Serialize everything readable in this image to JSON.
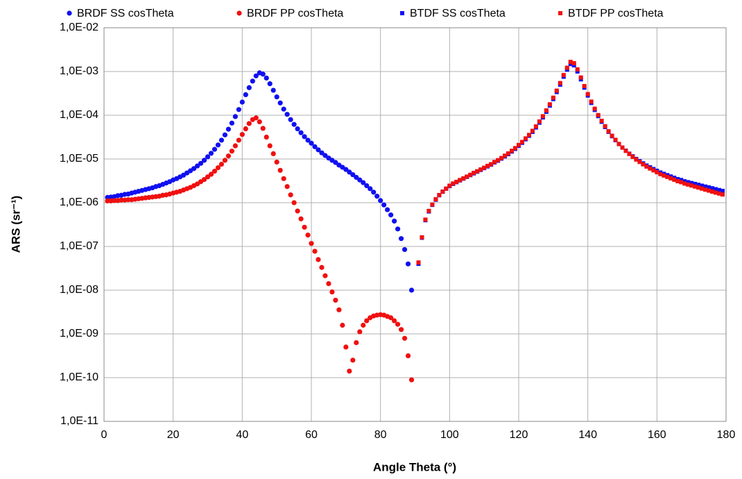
{
  "chart_data": {
    "type": "scatter",
    "x_label": "Angle Theta (°)",
    "y_label": "ARS (sr⁻¹)",
    "xlim": [
      0,
      180
    ],
    "xticks": [
      0,
      20,
      40,
      60,
      80,
      100,
      120,
      140,
      160,
      180
    ],
    "ylim": [
      1e-11,
      0.01
    ],
    "log_y": true,
    "grid": true,
    "legend": "top",
    "yticks": [
      {
        "value": 1e-11,
        "label": "1,0E-11"
      },
      {
        "value": 1e-10,
        "label": "1,0E-10"
      },
      {
        "value": 1e-09,
        "label": "1,0E-09"
      },
      {
        "value": 1e-08,
        "label": "1,0E-08"
      },
      {
        "value": 1e-07,
        "label": "1,0E-07"
      },
      {
        "value": 1e-06,
        "label": "1,0E-06"
      },
      {
        "value": 1e-05,
        "label": "1,0E-05"
      },
      {
        "value": 0.0001,
        "label": "1,0E-04"
      },
      {
        "value": 0.001,
        "label": "1,0E-03"
      },
      {
        "value": 0.01,
        "label": "1,0E-02"
      }
    ],
    "series": [
      {
        "name": "BRDF SS cosTheta",
        "color": "#1010f0",
        "marker": "circle",
        "x": [
          1,
          2,
          3,
          4,
          5,
          6,
          7,
          8,
          9,
          10,
          11,
          12,
          13,
          14,
          15,
          16,
          17,
          18,
          19,
          20,
          21,
          22,
          23,
          24,
          25,
          26,
          27,
          28,
          29,
          30,
          31,
          32,
          33,
          34,
          35,
          36,
          37,
          38,
          39,
          40,
          41,
          42,
          43,
          44,
          45,
          46,
          47,
          48,
          49,
          50,
          51,
          52,
          53,
          54,
          55,
          56,
          57,
          58,
          59,
          60,
          61,
          62,
          63,
          64,
          65,
          66,
          67,
          68,
          69,
          70,
          71,
          72,
          73,
          74,
          75,
          76,
          77,
          78,
          79,
          80,
          81,
          82,
          83,
          84,
          85,
          86,
          87,
          88,
          89
        ],
        "values": [
          1.32e-06,
          1.35e-06,
          1.38e-06,
          1.45e-06,
          1.48e-06,
          1.55e-06,
          1.58e-06,
          1.66e-06,
          1.74e-06,
          1.82e-06,
          1.91e-06,
          2e-06,
          2.09e-06,
          2.19e-06,
          2.34e-06,
          2.45e-06,
          2.63e-06,
          2.82e-06,
          3.02e-06,
          3.31e-06,
          3.55e-06,
          3.89e-06,
          4.27e-06,
          4.79e-06,
          5.37e-06,
          6.03e-06,
          6.92e-06,
          7.94e-06,
          9.33e-06,
          1.12e-05,
          1.35e-05,
          1.66e-05,
          2.09e-05,
          2.69e-05,
          3.55e-05,
          4.79e-05,
          6.61e-05,
          9.33e-05,
          0.000135,
          0.0002,
          0.000295,
          0.000427,
          0.000603,
          0.000794,
          0.000933,
          0.000871,
          0.000708,
          0.000525,
          0.000372,
          0.000263,
          0.000191,
          0.000138,
          0.000105,
          7.94e-05,
          6.17e-05,
          4.9e-05,
          3.98e-05,
          3.24e-05,
          2.69e-05,
          2.29e-05,
          1.91e-05,
          1.62e-05,
          1.38e-05,
          1.2e-05,
          1.05e-05,
          9.33e-06,
          8.32e-06,
          7.24e-06,
          6.46e-06,
          5.75e-06,
          5.01e-06,
          4.37e-06,
          3.8e-06,
          3.31e-06,
          2.88e-06,
          2.45e-06,
          2.09e-06,
          1.74e-06,
          1.41e-06,
          1.12e-06,
          8.91e-07,
          6.92e-07,
          5.25e-07,
          3.8e-07,
          2.51e-07,
          1.51e-07,
          8.51e-08,
          3.98e-08,
          1e-08
        ]
      },
      {
        "name": "BRDF PP cosTheta",
        "color": "#f01010",
        "marker": "circle",
        "x": [
          1,
          2,
          3,
          4,
          5,
          6,
          7,
          8,
          9,
          10,
          11,
          12,
          13,
          14,
          15,
          16,
          17,
          18,
          19,
          20,
          21,
          22,
          23,
          24,
          25,
          26,
          27,
          28,
          29,
          30,
          31,
          32,
          33,
          34,
          35,
          36,
          37,
          38,
          39,
          40,
          41,
          42,
          43,
          44,
          45,
          46,
          47,
          48,
          49,
          50,
          51,
          52,
          53,
          54,
          55,
          56,
          57,
          58,
          59,
          60,
          61,
          62,
          63,
          64,
          65,
          66,
          67,
          68,
          69,
          70,
          71,
          72,
          73,
          74,
          75,
          76,
          77,
          78,
          79,
          80,
          81,
          82,
          83,
          84,
          85,
          86,
          87,
          88,
          89
        ],
        "values": [
          1.1e-06,
          1.1e-06,
          1.12e-06,
          1.12e-06,
          1.15e-06,
          1.15e-06,
          1.17e-06,
          1.17e-06,
          1.2e-06,
          1.23e-06,
          1.26e-06,
          1.29e-06,
          1.32e-06,
          1.35e-06,
          1.38e-06,
          1.41e-06,
          1.48e-06,
          1.51e-06,
          1.58e-06,
          1.66e-06,
          1.74e-06,
          1.82e-06,
          1.95e-06,
          2.09e-06,
          2.24e-06,
          2.45e-06,
          2.69e-06,
          3.02e-06,
          3.39e-06,
          3.89e-06,
          4.47e-06,
          5.25e-06,
          6.31e-06,
          7.59e-06,
          9.33e-06,
          1.17e-05,
          1.51e-05,
          2e-05,
          2.69e-05,
          3.63e-05,
          4.9e-05,
          6.46e-05,
          7.94e-05,
          8.71e-05,
          7.08e-05,
          5.01e-05,
          3.16e-05,
          2e-05,
          1.32e-05,
          8.51e-06,
          5.5e-06,
          3.55e-06,
          2.34e-06,
          1.51e-06,
          1e-06,
          6.46e-07,
          4.27e-07,
          2.75e-07,
          1.82e-07,
          1.17e-07,
          7.76e-08,
          5.01e-08,
          3.31e-08,
          2.14e-08,
          1.41e-08,
          9.12e-09,
          5.89e-09,
          3.55e-09,
          1.58e-09,
          5.01e-10,
          1.41e-10,
          2.51e-10,
          6.31e-10,
          1.12e-09,
          1.58e-09,
          2e-09,
          2.34e-09,
          2.57e-09,
          2.69e-09,
          2.75e-09,
          2.69e-09,
          2.51e-09,
          2.34e-09,
          2e-09,
          1.66e-09,
          1.26e-09,
          7.94e-10,
          3.16e-10,
          8.91e-11
        ]
      },
      {
        "name": "BTDF SS cosTheta",
        "color": "#1010f0",
        "marker": "square",
        "x": [
          91,
          92,
          93,
          94,
          95,
          96,
          97,
          98,
          99,
          100,
          101,
          102,
          103,
          104,
          105,
          106,
          107,
          108,
          109,
          110,
          111,
          112,
          113,
          114,
          115,
          116,
          117,
          118,
          119,
          120,
          121,
          122,
          123,
          124,
          125,
          126,
          127,
          128,
          129,
          130,
          131,
          132,
          133,
          134,
          135,
          136,
          137,
          138,
          139,
          140,
          141,
          142,
          143,
          144,
          145,
          146,
          147,
          148,
          149,
          150,
          151,
          152,
          153,
          154,
          155,
          156,
          157,
          158,
          159,
          160,
          161,
          162,
          163,
          164,
          165,
          166,
          167,
          168,
          169,
          170,
          171,
          172,
          173,
          174,
          175,
          176,
          177,
          178,
          179
        ],
        "values": [
          4e-08,
          1.58e-07,
          3.98e-07,
          6.31e-07,
          8.91e-07,
          1.17e-06,
          1.48e-06,
          1.78e-06,
          2.09e-06,
          2.4e-06,
          2.69e-06,
          2.95e-06,
          3.24e-06,
          3.55e-06,
          3.89e-06,
          4.27e-06,
          4.68e-06,
          5.13e-06,
          5.62e-06,
          6.17e-06,
          6.76e-06,
          7.41e-06,
          8.32e-06,
          9.12e-06,
          1.02e-05,
          1.15e-05,
          1.29e-05,
          1.48e-05,
          1.7e-05,
          2e-05,
          2.34e-05,
          2.82e-05,
          3.39e-05,
          4.17e-05,
          5.25e-05,
          6.76e-05,
          8.91e-05,
          0.00012,
          0.000166,
          0.000234,
          0.000339,
          0.000501,
          0.000759,
          0.0011,
          0.00148,
          0.00138,
          0.001,
          0.000661,
          0.000427,
          0.000282,
          0.000191,
          0.000132,
          9.55e-05,
          7.08e-05,
          5.37e-05,
          4.17e-05,
          3.31e-05,
          2.69e-05,
          2.19e-05,
          1.82e-05,
          1.55e-05,
          1.32e-05,
          1.15e-05,
          1e-05,
          8.91e-06,
          7.94e-06,
          7.08e-06,
          6.46e-06,
          5.89e-06,
          5.37e-06,
          4.9e-06,
          4.57e-06,
          4.27e-06,
          3.98e-06,
          3.72e-06,
          3.47e-06,
          3.31e-06,
          3.09e-06,
          2.95e-06,
          2.82e-06,
          2.69e-06,
          2.57e-06,
          2.45e-06,
          2.34e-06,
          2.24e-06,
          2.14e-06,
          2.04e-06,
          1.95e-06,
          1.86e-06
        ]
      },
      {
        "name": "BTDF PP cosTheta",
        "color": "#f01010",
        "marker": "square",
        "x": [
          91,
          92,
          93,
          94,
          95,
          96,
          97,
          98,
          99,
          100,
          101,
          102,
          103,
          104,
          105,
          106,
          107,
          108,
          109,
          110,
          111,
          112,
          113,
          114,
          115,
          116,
          117,
          118,
          119,
          120,
          121,
          122,
          123,
          124,
          125,
          126,
          127,
          128,
          129,
          130,
          131,
          132,
          133,
          134,
          135,
          136,
          137,
          138,
          139,
          140,
          141,
          142,
          143,
          144,
          145,
          146,
          147,
          148,
          149,
          150,
          151,
          152,
          153,
          154,
          155,
          156,
          157,
          158,
          159,
          160,
          161,
          162,
          163,
          164,
          165,
          166,
          167,
          168,
          169,
          170,
          171,
          172,
          173,
          174,
          175,
          176,
          177,
          178,
          179
        ],
        "values": [
          4.3e-08,
          1.62e-07,
          4.1e-07,
          6.5e-07,
          9.1e-07,
          1.2e-06,
          1.5e-06,
          1.8e-06,
          2.1e-06,
          2.45e-06,
          2.75e-06,
          3e-06,
          3.3e-06,
          3.6e-06,
          3.95e-06,
          4.35e-06,
          4.8e-06,
          5.25e-06,
          5.75e-06,
          6.3e-06,
          6.95e-06,
          7.6e-06,
          8.55e-06,
          9.4e-06,
          1.05e-05,
          1.19e-05,
          1.34e-05,
          1.54e-05,
          1.77e-05,
          2.09e-05,
          2.45e-05,
          2.95e-05,
          3.55e-05,
          4.4e-05,
          5.55e-05,
          7.2e-05,
          9.5e-05,
          0.000129,
          0.000178,
          0.000252,
          0.000365,
          0.000545,
          0.00083,
          0.00122,
          0.00166,
          0.00155,
          0.00112,
          0.00073,
          0.000465,
          0.000305,
          0.000205,
          0.000141,
          0.000101,
          7.45e-05,
          5.6e-05,
          4.3e-05,
          3.4e-05,
          2.74e-05,
          2.21e-05,
          1.82e-05,
          1.53e-05,
          1.3e-05,
          1.12e-05,
          9.7e-06,
          8.55e-06,
          7.55e-06,
          6.7e-06,
          6.05e-06,
          5.5e-06,
          4.98e-06,
          4.5e-06,
          4.18e-06,
          3.88e-06,
          3.6e-06,
          3.35e-06,
          3.1e-06,
          2.95e-06,
          2.74e-06,
          2.6e-06,
          2.47e-06,
          2.34e-06,
          2.22e-06,
          2.1e-06,
          1.99e-06,
          1.89e-06,
          1.79e-06,
          1.7e-06,
          1.62e-06,
          1.54e-06
        ]
      }
    ]
  }
}
